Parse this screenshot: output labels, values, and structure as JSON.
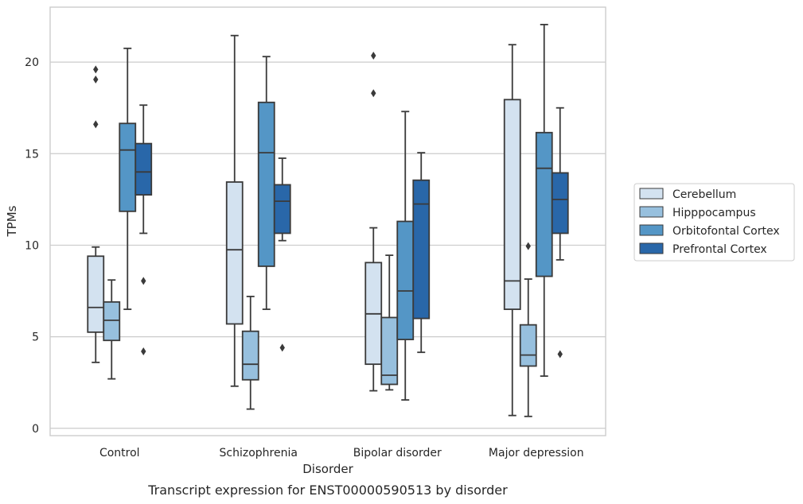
{
  "chart_data": {
    "type": "box",
    "title": "",
    "caption": "Transcript expression for ENST00000590513 by disorder",
    "xlabel": "Disorder",
    "ylabel": "TPMs",
    "ylim": [
      -0.4,
      23.0
    ],
    "yticks": [
      "0",
      "5",
      "10",
      "15",
      "20"
    ],
    "grid": true,
    "legend_position": "right",
    "categories": [
      "Control",
      "Schizophrenia",
      "Bipolar disorder",
      "Major depression"
    ],
    "series": [
      {
        "name": "Cerebellum",
        "color": "#d3e2f0",
        "boxes": [
          {
            "whislo": 3.6,
            "q1": 5.25,
            "median": 6.6,
            "q3": 9.4,
            "whishi": 9.9,
            "fliers": [
              16.6,
              19.05,
              19.6
            ]
          },
          {
            "whislo": 2.3,
            "q1": 5.7,
            "median": 9.75,
            "q3": 13.45,
            "whishi": 21.45,
            "fliers": []
          },
          {
            "whislo": 2.05,
            "q1": 3.5,
            "median": 6.25,
            "q3": 9.05,
            "whishi": 10.95,
            "fliers": [
              18.3,
              20.35
            ]
          },
          {
            "whislo": 0.7,
            "q1": 6.5,
            "median": 8.05,
            "q3": 17.95,
            "whishi": 20.95,
            "fliers": []
          }
        ]
      },
      {
        "name": "Hipppocampus",
        "color": "#97c0de",
        "boxes": [
          {
            "whislo": 2.7,
            "q1": 4.8,
            "median": 5.9,
            "q3": 6.9,
            "whishi": 8.1,
            "fliers": []
          },
          {
            "whislo": 1.05,
            "q1": 2.65,
            "median": 3.5,
            "q3": 5.3,
            "whishi": 7.2,
            "fliers": []
          },
          {
            "whislo": 2.1,
            "q1": 2.4,
            "median": 2.9,
            "q3": 6.05,
            "whishi": 9.45,
            "fliers": []
          },
          {
            "whislo": 0.65,
            "q1": 3.4,
            "median": 4.0,
            "q3": 5.65,
            "whishi": 8.15,
            "fliers": [
              9.95
            ]
          }
        ]
      },
      {
        "name": "Orbitofontal Cortex",
        "color": "#5496c6",
        "boxes": [
          {
            "whislo": 6.5,
            "q1": 11.85,
            "median": 15.2,
            "q3": 16.65,
            "whishi": 20.75,
            "fliers": []
          },
          {
            "whislo": 6.5,
            "q1": 8.85,
            "median": 15.05,
            "q3": 17.8,
            "whishi": 20.3,
            "fliers": []
          },
          {
            "whislo": 1.55,
            "q1": 4.85,
            "median": 7.5,
            "q3": 11.3,
            "whishi": 17.3,
            "fliers": []
          },
          {
            "whislo": 2.85,
            "q1": 8.3,
            "median": 14.2,
            "q3": 16.15,
            "whishi": 22.05,
            "fliers": []
          }
        ]
      },
      {
        "name": "Prefrontal Cortex",
        "color": "#2967a9",
        "boxes": [
          {
            "whislo": 10.65,
            "q1": 12.75,
            "median": 14.0,
            "q3": 15.55,
            "whishi": 17.65,
            "fliers": [
              4.2,
              8.05
            ]
          },
          {
            "whislo": 10.25,
            "q1": 10.65,
            "median": 12.4,
            "q3": 13.3,
            "whishi": 14.75,
            "fliers": [
              4.4
            ]
          },
          {
            "whislo": 4.15,
            "q1": 6.0,
            "median": 12.25,
            "q3": 13.55,
            "whishi": 15.05,
            "fliers": []
          },
          {
            "whislo": 9.2,
            "q1": 10.65,
            "median": 12.5,
            "q3": 13.95,
            "whishi": 17.5,
            "fliers": [
              4.05
            ]
          }
        ]
      }
    ]
  }
}
